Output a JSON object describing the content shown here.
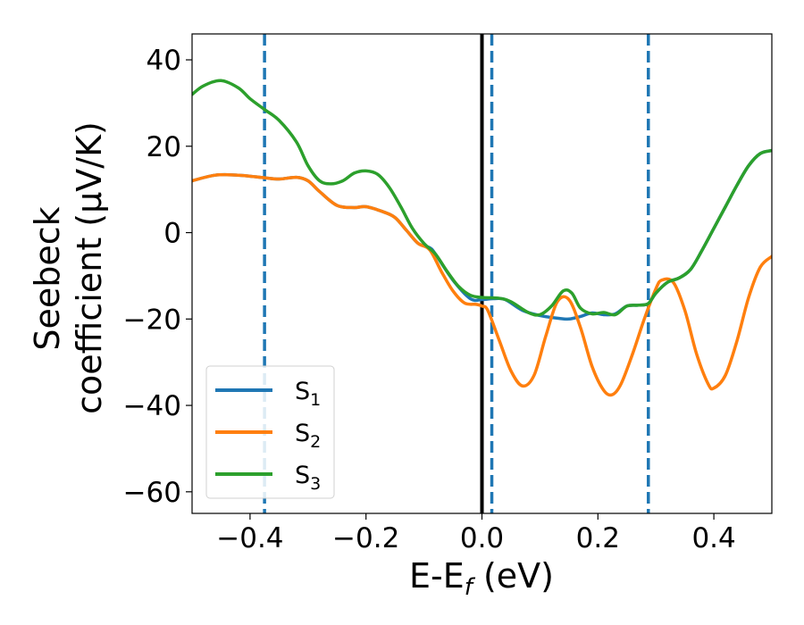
{
  "chart_data": {
    "type": "line",
    "xlabel": "E-E",
    "xlabel_sub": "f",
    "xlabel_unit": " (eV)",
    "ylabel_line1": "Seebeck",
    "ylabel_line2": "coefficient  (μV/K)",
    "xlim": [
      -0.5,
      0.5
    ],
    "ylim": [
      -65,
      46
    ],
    "xticks": [
      -0.4,
      -0.2,
      0.0,
      0.2,
      0.4
    ],
    "xtick_labels": [
      "−0.4",
      "−0.2",
      "0.0",
      "0.2",
      "0.4"
    ],
    "yticks": [
      40,
      20,
      0,
      -20,
      -40,
      -60
    ],
    "ytick_labels": [
      "40",
      "20",
      "0",
      "−20",
      "−40",
      "−60"
    ],
    "grid": false,
    "legend_position": "lower-left",
    "vertical_lines": [
      {
        "x": -0.375,
        "style": "dashed",
        "color": "#1f77b4"
      },
      {
        "x": 0.0,
        "style": "solid",
        "color": "#000000"
      },
      {
        "x": 0.017,
        "style": "dashed",
        "color": "#1f77b4"
      },
      {
        "x": 0.287,
        "style": "dashed",
        "color": "#1f77b4"
      }
    ],
    "series": [
      {
        "name": "S",
        "sub": "1",
        "color": "#1f77b4",
        "points": [
          [
            -0.5,
            12
          ],
          [
            -0.46,
            13.3
          ],
          [
            -0.42,
            13.3
          ],
          [
            -0.375,
            12.7
          ],
          [
            -0.35,
            12.4
          ],
          [
            -0.32,
            12.8
          ],
          [
            -0.3,
            12
          ],
          [
            -0.28,
            9.5
          ],
          [
            -0.25,
            6.3
          ],
          [
            -0.22,
            5.8
          ],
          [
            -0.2,
            6
          ],
          [
            -0.17,
            4.8
          ],
          [
            -0.15,
            3.5
          ],
          [
            -0.13,
            0.5
          ],
          [
            -0.11,
            -2.5
          ],
          [
            -0.09,
            -3.5
          ],
          [
            -0.08,
            -5
          ],
          [
            -0.05,
            -11
          ],
          [
            -0.02,
            -15.3
          ],
          [
            0,
            -15.5
          ],
          [
            0.02,
            -15.3
          ],
          [
            0.04,
            -15.5
          ],
          [
            0.07,
            -18
          ],
          [
            0.1,
            -19.2
          ],
          [
            0.13,
            -19.8
          ],
          [
            0.15,
            -20
          ],
          [
            0.17,
            -19.4
          ],
          [
            0.19,
            -18.6
          ],
          [
            0.21,
            -19
          ],
          [
            0.23,
            -18.8
          ],
          [
            0.25,
            -17
          ],
          [
            0.27,
            -16.8
          ],
          [
            0.287,
            -16.4
          ],
          [
            0.3,
            -14
          ],
          [
            0.32,
            -11.5
          ],
          [
            0.34,
            -10.5
          ],
          [
            0.36,
            -8.5
          ],
          [
            0.38,
            -4
          ],
          [
            0.4,
            1
          ],
          [
            0.42,
            6
          ],
          [
            0.44,
            11
          ],
          [
            0.46,
            15.5
          ],
          [
            0.48,
            18.3
          ],
          [
            0.5,
            19
          ]
        ]
      },
      {
        "name": "S",
        "sub": "2",
        "color": "#ff7f0e",
        "points": [
          [
            -0.5,
            12
          ],
          [
            -0.46,
            13.3
          ],
          [
            -0.42,
            13.3
          ],
          [
            -0.375,
            12.7
          ],
          [
            -0.35,
            12.4
          ],
          [
            -0.32,
            12.8
          ],
          [
            -0.3,
            12
          ],
          [
            -0.28,
            9.5
          ],
          [
            -0.25,
            6.3
          ],
          [
            -0.22,
            5.8
          ],
          [
            -0.2,
            6
          ],
          [
            -0.17,
            4.8
          ],
          [
            -0.15,
            3.5
          ],
          [
            -0.13,
            0.5
          ],
          [
            -0.11,
            -2.5
          ],
          [
            -0.09,
            -4
          ],
          [
            -0.07,
            -9
          ],
          [
            -0.05,
            -13.5
          ],
          [
            -0.03,
            -16.3
          ],
          [
            -0.01,
            -16.6
          ],
          [
            0,
            -17
          ],
          [
            0.01,
            -18
          ],
          [
            0.03,
            -25
          ],
          [
            0.05,
            -32
          ],
          [
            0.07,
            -35.5
          ],
          [
            0.09,
            -33
          ],
          [
            0.11,
            -24
          ],
          [
            0.13,
            -16
          ],
          [
            0.15,
            -15.5
          ],
          [
            0.17,
            -22
          ],
          [
            0.19,
            -31
          ],
          [
            0.21,
            -36.5
          ],
          [
            0.225,
            -37.5
          ],
          [
            0.24,
            -35
          ],
          [
            0.26,
            -28
          ],
          [
            0.28,
            -20
          ],
          [
            0.3,
            -13
          ],
          [
            0.31,
            -11
          ],
          [
            0.33,
            -11.5
          ],
          [
            0.35,
            -18
          ],
          [
            0.37,
            -28
          ],
          [
            0.39,
            -35
          ],
          [
            0.4,
            -36
          ],
          [
            0.42,
            -33
          ],
          [
            0.44,
            -25
          ],
          [
            0.46,
            -15
          ],
          [
            0.48,
            -8
          ],
          [
            0.5,
            -5.5
          ]
        ]
      },
      {
        "name": "S",
        "sub": "3",
        "color": "#2ca02c",
        "points": [
          [
            -0.5,
            32
          ],
          [
            -0.48,
            34
          ],
          [
            -0.45,
            35.2
          ],
          [
            -0.42,
            33.5
          ],
          [
            -0.4,
            31
          ],
          [
            -0.375,
            28.5
          ],
          [
            -0.35,
            26
          ],
          [
            -0.32,
            21
          ],
          [
            -0.3,
            15.5
          ],
          [
            -0.28,
            12
          ],
          [
            -0.26,
            11.3
          ],
          [
            -0.24,
            12
          ],
          [
            -0.22,
            13.8
          ],
          [
            -0.2,
            14.3
          ],
          [
            -0.18,
            13.5
          ],
          [
            -0.16,
            10.5
          ],
          [
            -0.14,
            6
          ],
          [
            -0.12,
            1
          ],
          [
            -0.1,
            -2.5
          ],
          [
            -0.08,
            -5
          ],
          [
            -0.06,
            -9
          ],
          [
            -0.04,
            -12.5
          ],
          [
            -0.02,
            -14.5
          ],
          [
            0,
            -15
          ],
          [
            0.03,
            -15.2
          ],
          [
            0.05,
            -16
          ],
          [
            0.08,
            -18.5
          ],
          [
            0.1,
            -19
          ],
          [
            0.12,
            -17
          ],
          [
            0.14,
            -13.5
          ],
          [
            0.155,
            -14
          ],
          [
            0.17,
            -17.5
          ],
          [
            0.19,
            -18.8
          ],
          [
            0.21,
            -18.5
          ],
          [
            0.23,
            -19
          ],
          [
            0.25,
            -17
          ],
          [
            0.27,
            -16.8
          ],
          [
            0.287,
            -16.4
          ],
          [
            0.3,
            -14
          ],
          [
            0.32,
            -11.5
          ],
          [
            0.34,
            -10.5
          ],
          [
            0.36,
            -8.5
          ],
          [
            0.38,
            -4
          ],
          [
            0.4,
            1
          ],
          [
            0.42,
            6
          ],
          [
            0.44,
            11
          ],
          [
            0.46,
            15.5
          ],
          [
            0.48,
            18.3
          ],
          [
            0.5,
            19
          ]
        ]
      }
    ]
  }
}
